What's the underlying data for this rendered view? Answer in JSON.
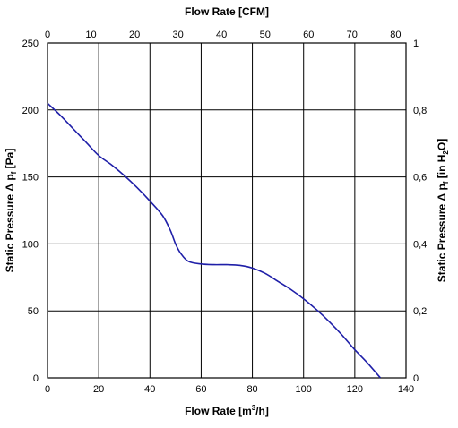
{
  "chart_data": {
    "type": "line",
    "title": "",
    "xlabel": "Flow Rate [m",
    "xlabel_sup": "3",
    "xlabel_tail": "/h]",
    "x2label": "Flow Rate [CFM]",
    "ylabel": "Static Pressure Δ p",
    "ylabel_sub": "f",
    "ylabel_tail": " [Pa]",
    "y2label": "Static Pressure Δ p",
    "y2label_sub": "f",
    "y2label_mid": " [in H",
    "y2label_sub2": "2",
    "y2label_tail": "O]",
    "xlim": [
      0,
      140
    ],
    "ylim": [
      0,
      250
    ],
    "x2lim": [
      0,
      82.4
    ],
    "y2lim": [
      0,
      1.0
    ],
    "x_ticks": [
      "0",
      "20",
      "40",
      "60",
      "80",
      "100",
      "120",
      "140"
    ],
    "y_ticks": [
      "0",
      "50",
      "100",
      "150",
      "200",
      "250"
    ],
    "x2_ticks": [
      "0",
      "10",
      "20",
      "30",
      "40",
      "50",
      "60",
      "70",
      "80"
    ],
    "y2_ticks": [
      "0",
      "0,2",
      "0,4",
      "0,6",
      "0,8",
      "1"
    ],
    "grid": true,
    "color": "#1f1fa8",
    "series": [
      {
        "x": [
          0,
          5,
          10,
          15,
          20,
          25,
          30,
          35,
          40,
          45,
          48,
          50,
          52,
          55,
          60,
          65,
          70,
          75,
          80,
          85,
          90,
          95,
          100,
          105,
          110,
          115,
          120,
          125,
          130
        ],
        "y": [
          205,
          196,
          186,
          176,
          166,
          159,
          151,
          142,
          132,
          121,
          110,
          100,
          93,
          87,
          85,
          84.5,
          84.5,
          84,
          82,
          78,
          72,
          66,
          59,
          51,
          42,
          32,
          21,
          11,
          0
        ]
      }
    ]
  }
}
